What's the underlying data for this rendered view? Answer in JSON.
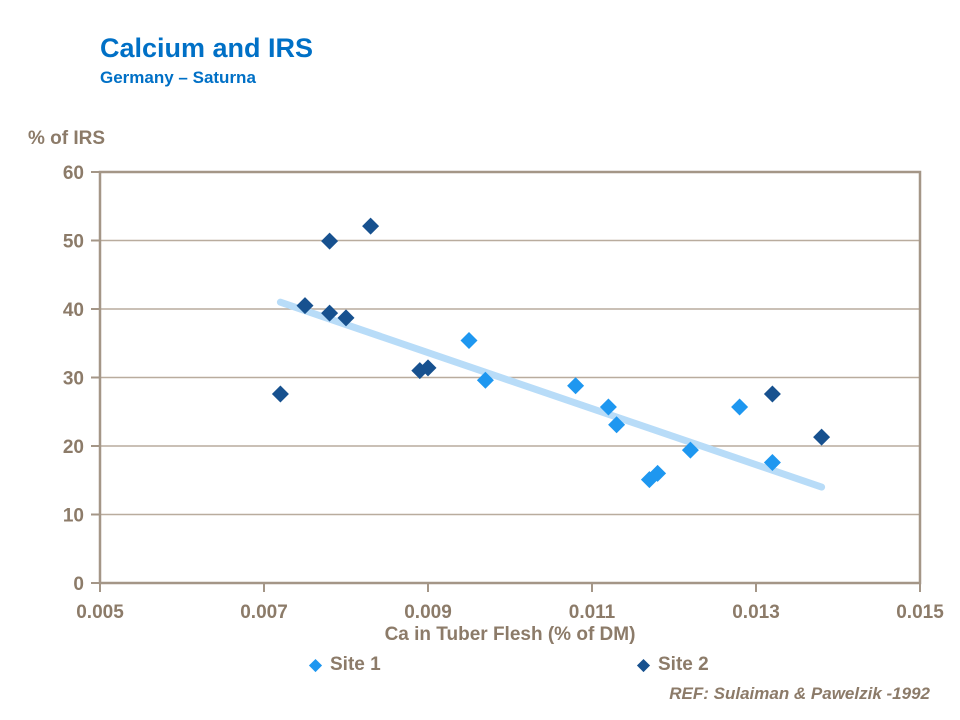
{
  "title": "Calcium and IRS",
  "subtitle": "Germany – Saturna",
  "reference": "REF: Sulaiman & Pawelzik -1992",
  "colors": {
    "title_blue": "#0070C6",
    "text_brown": "#8C7B69",
    "frame": "#A49687",
    "gridline": "#B9AC9E",
    "site1_blue": "#1E97F0",
    "site2_blue": "#17518F",
    "trend_blue": "#B8DCF8"
  },
  "chart_data": {
    "type": "scatter",
    "title": "Calcium and IRS",
    "subtitle": "Germany – Saturna",
    "xlabel": "Ca in Tuber Flesh (% of DM)",
    "ylabel": "% of IRS",
    "xlim": [
      0.005,
      0.015
    ],
    "ylim": [
      0,
      60
    ],
    "x_ticks": [
      0.005,
      0.007,
      0.009,
      0.011,
      0.013,
      0.015
    ],
    "y_ticks": [
      0,
      10,
      20,
      30,
      40,
      50,
      60
    ],
    "grid": "horizontal",
    "legend_position": "bottom",
    "series": [
      {
        "name": "Site 1",
        "color": "#1E97F0",
        "points": [
          [
            0.0095,
            35.4
          ],
          [
            0.0097,
            29.6
          ],
          [
            0.0108,
            28.8
          ],
          [
            0.0112,
            25.7
          ],
          [
            0.0113,
            23.1
          ],
          [
            0.0117,
            15.1
          ],
          [
            0.0118,
            16.0
          ],
          [
            0.0122,
            19.4
          ],
          [
            0.0128,
            25.7
          ],
          [
            0.0132,
            17.6
          ]
        ]
      },
      {
        "name": "Site 2",
        "color": "#17518F",
        "points": [
          [
            0.0072,
            27.6
          ],
          [
            0.0075,
            40.5
          ],
          [
            0.0078,
            49.9
          ],
          [
            0.0078,
            39.4
          ],
          [
            0.008,
            38.7
          ],
          [
            0.0083,
            52.1
          ],
          [
            0.0089,
            31.0
          ],
          [
            0.009,
            31.4
          ],
          [
            0.0132,
            27.6
          ],
          [
            0.0138,
            21.3
          ]
        ]
      }
    ],
    "trend_line": {
      "color": "#B8DCF8",
      "start": [
        0.0072,
        41.0
      ],
      "end": [
        0.0138,
        14.0
      ]
    }
  }
}
